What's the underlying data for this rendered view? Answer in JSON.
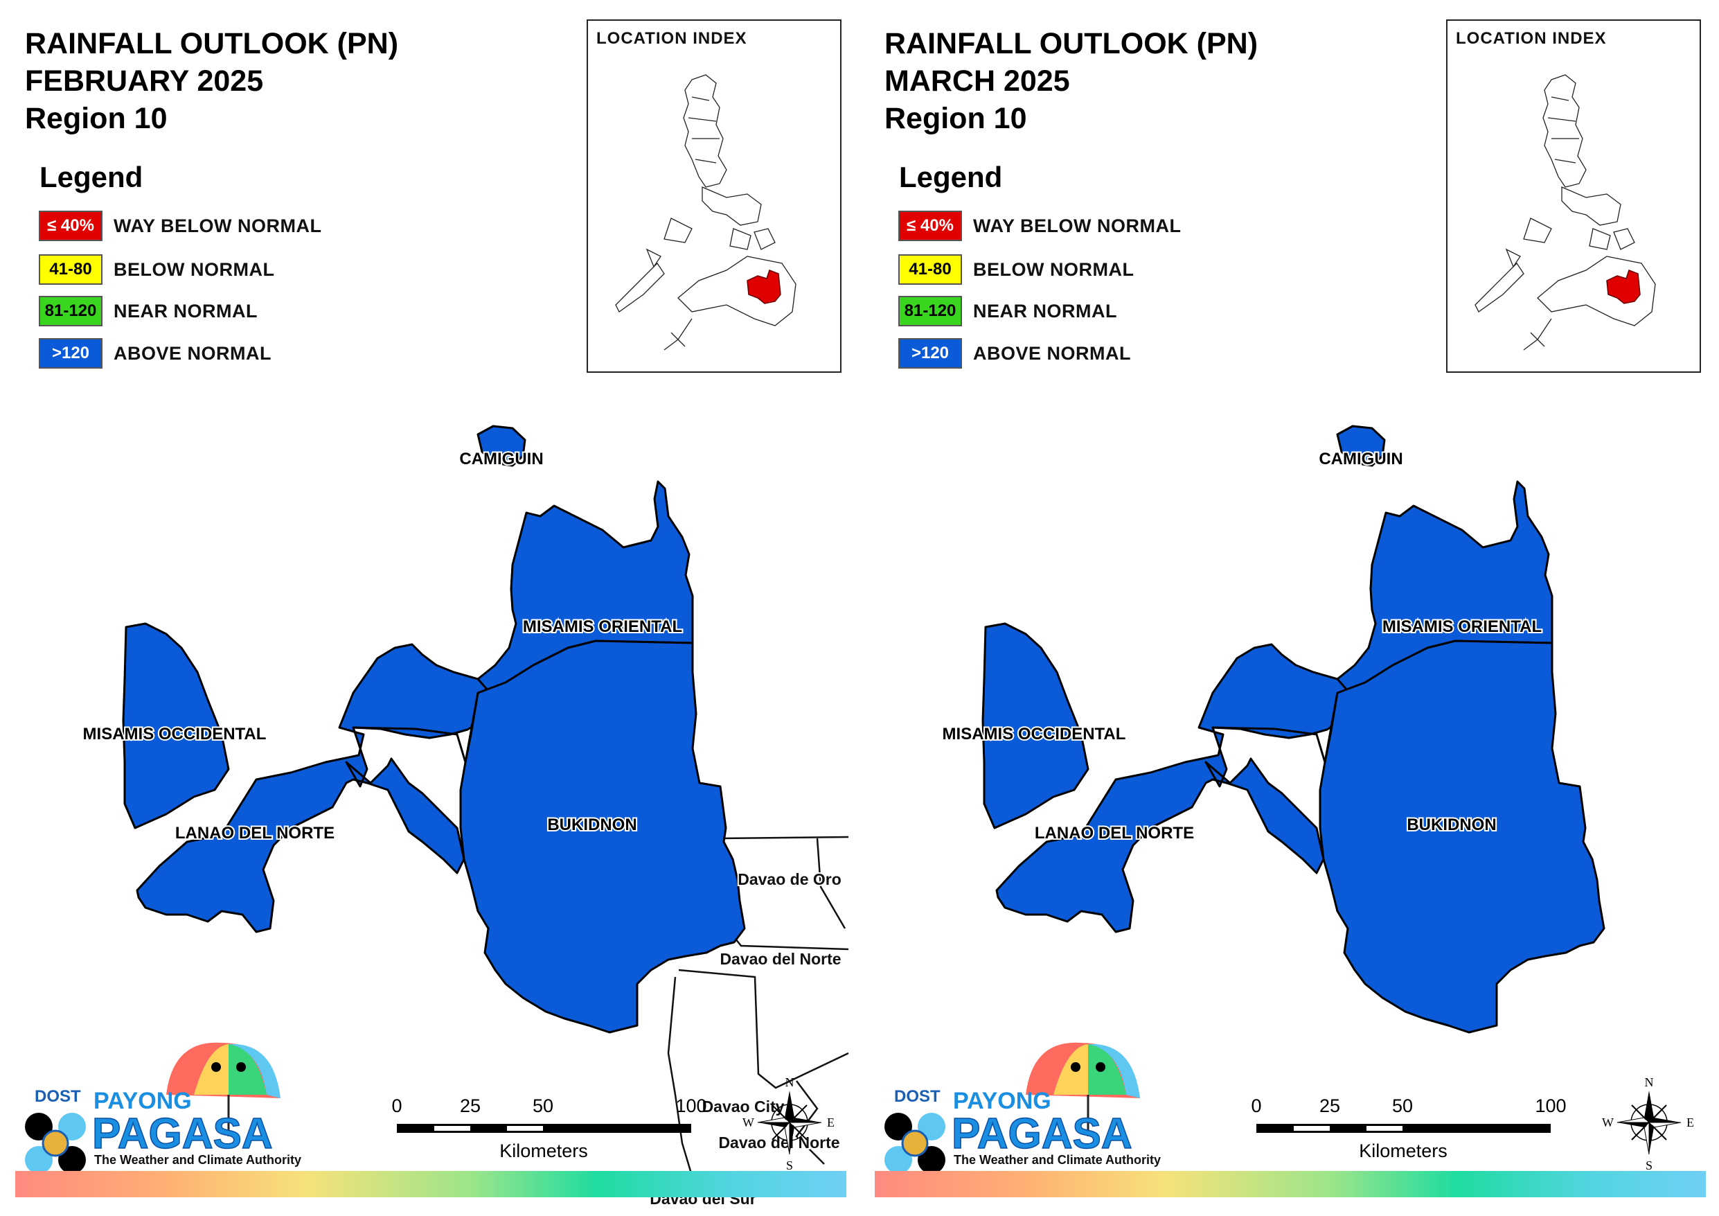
{
  "panels": [
    {
      "title_line1": "RAINFALL OUTLOOK (PN)",
      "title_line2": "FEBRUARY 2025",
      "title_line3": "Region 10",
      "legend_heading": "Legend",
      "legend": [
        {
          "swatch": "≤ 40%",
          "label": "WAY BELOW NORMAL",
          "color": "#e00000"
        },
        {
          "swatch": "41-80",
          "label": "BELOW NORMAL",
          "color": "#ffff00"
        },
        {
          "swatch": "81-120",
          "label": "NEAR NORMAL",
          "color": "#3ad51f"
        },
        {
          "swatch": ">120",
          "label": "ABOVE NORMAL",
          "color": "#0b5bd9"
        }
      ],
      "location_index_title": "LOCATION INDEX",
      "provinces": {
        "camiguin": "CAMIGUIN",
        "misamis_oriental": "MISAMIS ORIENTAL",
        "misamis_occidental": "MISAMIS OCCIDENTAL",
        "lanao_del_norte": "LANAO DEL NORTE",
        "bukidnon": "BUKIDNON"
      },
      "province_category": "ABOVE NORMAL",
      "neighbors": {
        "davao_de_oro": "Davao de Oro",
        "davao_del_norte": "Davao del Norte",
        "davao_city": "Davao City",
        "davao_del_norte_2": "Davao del Norte",
        "davao_del_sur": "Davao del Sur"
      },
      "scale": {
        "t0": "0",
        "t1": "25",
        "t2": "50",
        "t3": "100",
        "unit": "Kilometers"
      },
      "north_arrow": {
        "n": "N",
        "s": "S",
        "e": "E",
        "w": "W"
      },
      "logo": {
        "dost": "DOST",
        "payong": "PAYONG",
        "pagasa": "PAGASA",
        "tagline": "The Weather and Climate Authority"
      }
    },
    {
      "title_line1": "RAINFALL OUTLOOK (PN)",
      "title_line2": "MARCH 2025",
      "title_line3": "Region 10",
      "legend_heading": "Legend",
      "legend": [
        {
          "swatch": "≤ 40%",
          "label": "WAY BELOW NORMAL",
          "color": "#e00000"
        },
        {
          "swatch": "41-80",
          "label": "BELOW NORMAL",
          "color": "#ffff00"
        },
        {
          "swatch": "81-120",
          "label": "NEAR NORMAL",
          "color": "#3ad51f"
        },
        {
          "swatch": ">120",
          "label": "ABOVE NORMAL",
          "color": "#0b5bd9"
        }
      ],
      "location_index_title": "LOCATION INDEX",
      "provinces": {
        "camiguin": "CAMIGUIN",
        "misamis_oriental": "MISAMIS ORIENTAL",
        "misamis_occidental": "MISAMIS OCCIDENTAL",
        "lanao_del_norte": "LANAO DEL NORTE",
        "bukidnon": "BUKIDNON"
      },
      "province_category": "ABOVE NORMAL",
      "scale": {
        "t0": "0",
        "t1": "25",
        "t2": "50",
        "t3": "100",
        "unit": "Kilometers"
      },
      "north_arrow": {
        "n": "N",
        "s": "S",
        "e": "E",
        "w": "W"
      },
      "logo": {
        "dost": "DOST",
        "payong": "PAYONG",
        "pagasa": "PAGASA",
        "tagline": "The Weather and Climate Authority"
      }
    }
  ]
}
